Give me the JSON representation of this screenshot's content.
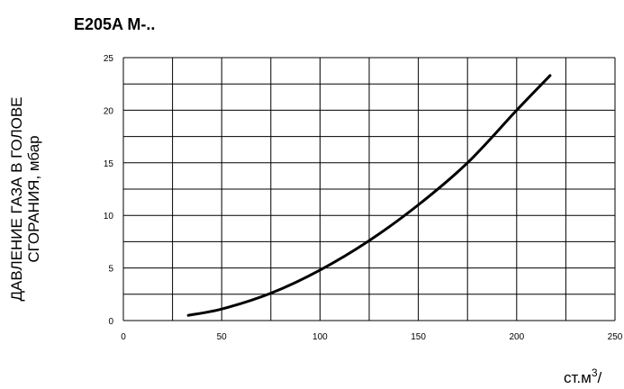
{
  "chart_data": {
    "type": "line",
    "title": "E205A M-..",
    "ylabel_line1": "ДАВЛЕНИЕ ГАЗА В ГОЛОВЕ",
    "ylabel_line2": "СГОРАНИЯ, мбар",
    "xunit_text": "ст.м",
    "xunit_sup": "3",
    "xunit_tail": "/",
    "xlim": [
      0,
      250
    ],
    "ylim": [
      0,
      25
    ],
    "x_ticks": [
      0,
      50,
      100,
      150,
      200,
      250
    ],
    "x_tick_labels": [
      "0",
      "50",
      "100",
      "150",
      "200",
      "250"
    ],
    "y_ticks": [
      0,
      5,
      10,
      15,
      20,
      25
    ],
    "y_tick_labels": [
      "0",
      "5",
      "10",
      "15",
      "20",
      "25"
    ],
    "grid": true,
    "x_grid_step": 25,
    "y_grid_step": 2.5,
    "series": [
      {
        "x": [
          33,
          50,
          75,
          100,
          125,
          150,
          175,
          200,
          217
        ],
        "y": [
          0.5,
          1.1,
          2.6,
          4.8,
          7.6,
          11.0,
          15.0,
          20.0,
          23.3
        ]
      }
    ]
  }
}
